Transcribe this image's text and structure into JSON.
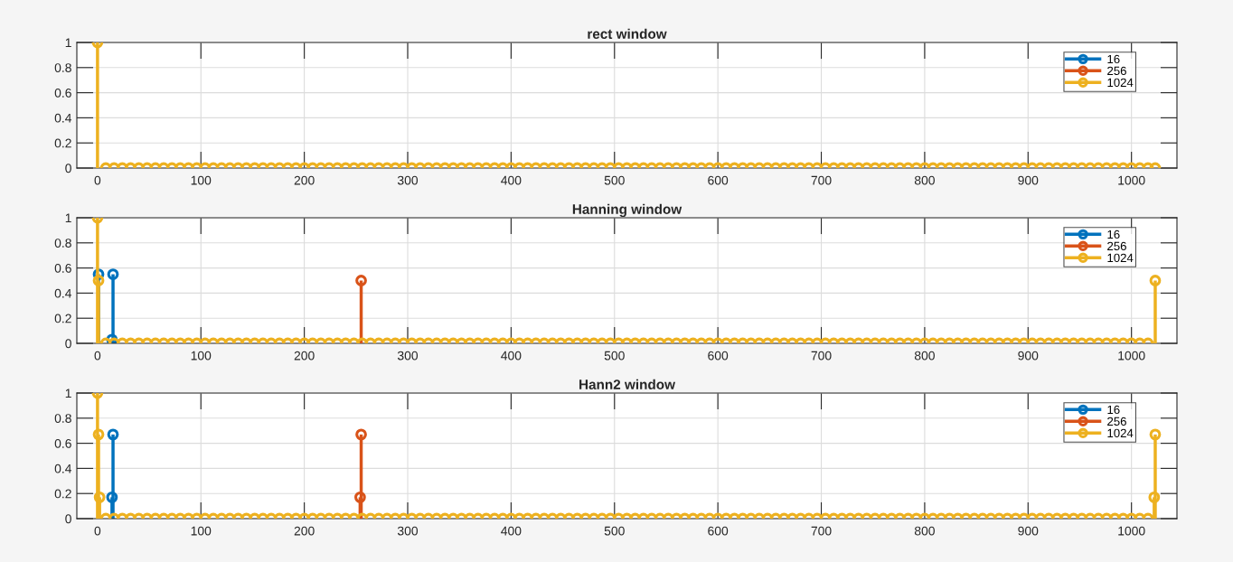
{
  "chart_data": [
    {
      "type": "lollipop",
      "title": "rect window",
      "xlim": [
        -20,
        1044
      ],
      "ylim": [
        0,
        1
      ],
      "xticks": [
        0,
        100,
        200,
        300,
        400,
        500,
        600,
        700,
        800,
        900,
        1000
      ],
      "yticks": [
        0,
        0.2,
        0.4,
        0.6,
        0.8,
        1
      ],
      "grid": true,
      "legend": "top right",
      "marker": "circle",
      "series": [
        {
          "name": "16",
          "color": "#0072bd"
        },
        {
          "name": "256",
          "color": "#d95319"
        },
        {
          "name": "1024",
          "color": "#edb120",
          "x": [
            0,
            8,
            16,
            24,
            32,
            40,
            48,
            56,
            64,
            72,
            80,
            88,
            96,
            104,
            112,
            120,
            128,
            136,
            144,
            152,
            160,
            168,
            176,
            184,
            192,
            200,
            208,
            216,
            224,
            232,
            240,
            248,
            256,
            264,
            272,
            280,
            288,
            296,
            304,
            312,
            320,
            328,
            336,
            344,
            352,
            360,
            368,
            376,
            384,
            392,
            400,
            408,
            416,
            424,
            432,
            440,
            448,
            456,
            464,
            472,
            480,
            488,
            496,
            504,
            512,
            520,
            528,
            536,
            544,
            552,
            560,
            568,
            576,
            584,
            592,
            600,
            608,
            616,
            624,
            632,
            640,
            648,
            656,
            664,
            672,
            680,
            688,
            696,
            704,
            712,
            720,
            728,
            736,
            744,
            752,
            760,
            768,
            776,
            784,
            792,
            800,
            808,
            816,
            824,
            832,
            840,
            848,
            856,
            864,
            872,
            880,
            888,
            896,
            904,
            912,
            920,
            928,
            936,
            944,
            952,
            960,
            968,
            976,
            984,
            992,
            1000,
            1008,
            1016,
            1023
          ],
          "values": [
            1,
            0,
            0,
            0,
            0,
            0,
            0,
            0,
            0,
            0,
            0,
            0,
            0,
            0,
            0,
            0,
            0,
            0,
            0,
            0,
            0,
            0,
            0,
            0,
            0,
            0,
            0,
            0,
            0,
            0,
            0,
            0,
            0,
            0,
            0,
            0,
            0,
            0,
            0,
            0,
            0,
            0,
            0,
            0,
            0,
            0,
            0,
            0,
            0,
            0,
            0,
            0,
            0,
            0,
            0,
            0,
            0,
            0,
            0,
            0,
            0,
            0,
            0,
            0,
            0,
            0,
            0,
            0,
            0,
            0,
            0,
            0,
            0,
            0,
            0,
            0,
            0,
            0,
            0,
            0,
            0,
            0,
            0,
            0,
            0,
            0,
            0,
            0,
            0,
            0,
            0,
            0,
            0,
            0,
            0,
            0,
            0,
            0,
            0,
            0,
            0,
            0,
            0,
            0,
            0,
            0,
            0,
            0,
            0,
            0,
            0,
            0,
            0,
            0,
            0,
            0,
            0,
            0,
            0,
            0,
            0,
            0,
            0,
            0,
            0,
            0,
            0,
            0,
            0
          ]
        }
      ]
    },
    {
      "type": "lollipop",
      "title": "Hanning window",
      "xlim": [
        -20,
        1044
      ],
      "ylim": [
        0,
        1
      ],
      "xticks": [
        0,
        100,
        200,
        300,
        400,
        500,
        600,
        700,
        800,
        900,
        1000
      ],
      "yticks": [
        0,
        0.2,
        0.4,
        0.6,
        0.8,
        1
      ],
      "grid": true,
      "legend": "top right",
      "marker": "circle",
      "series": [
        {
          "name": "16",
          "color": "#0072bd",
          "x": [
            1,
            2,
            14,
            15
          ],
          "values": [
            0.55,
            null,
            0.03,
            0.55
          ]
        },
        {
          "name": "256",
          "color": "#d95319",
          "x": [
            255
          ],
          "values": [
            0.5
          ]
        },
        {
          "name": "1024",
          "color": "#edb120",
          "x": [
            0,
            1,
            8,
            16,
            24,
            32,
            40,
            48,
            56,
            64,
            72,
            80,
            88,
            96,
            104,
            112,
            120,
            128,
            136,
            144,
            152,
            160,
            168,
            176,
            184,
            192,
            200,
            208,
            216,
            224,
            232,
            240,
            248,
            256,
            264,
            272,
            280,
            288,
            296,
            304,
            312,
            320,
            328,
            336,
            344,
            352,
            360,
            368,
            376,
            384,
            392,
            400,
            408,
            416,
            424,
            432,
            440,
            448,
            456,
            464,
            472,
            480,
            488,
            496,
            504,
            512,
            520,
            528,
            536,
            544,
            552,
            560,
            568,
            576,
            584,
            592,
            600,
            608,
            616,
            624,
            632,
            640,
            648,
            656,
            664,
            672,
            680,
            688,
            696,
            704,
            712,
            720,
            728,
            736,
            744,
            752,
            760,
            768,
            776,
            784,
            792,
            800,
            808,
            816,
            824,
            832,
            840,
            848,
            856,
            864,
            872,
            880,
            888,
            896,
            904,
            912,
            920,
            928,
            936,
            944,
            952,
            960,
            968,
            976,
            984,
            992,
            1000,
            1008,
            1016,
            1023
          ],
          "values": [
            1,
            0.5,
            0,
            0,
            0,
            0,
            0,
            0,
            0,
            0,
            0,
            0,
            0,
            0,
            0,
            0,
            0,
            0,
            0,
            0,
            0,
            0,
            0,
            0,
            0,
            0,
            0,
            0,
            0,
            0,
            0,
            0,
            0,
            0,
            0,
            0,
            0,
            0,
            0,
            0,
            0,
            0,
            0,
            0,
            0,
            0,
            0,
            0,
            0,
            0,
            0,
            0,
            0,
            0,
            0,
            0,
            0,
            0,
            0,
            0,
            0,
            0,
            0,
            0,
            0,
            0,
            0,
            0,
            0,
            0,
            0,
            0,
            0,
            0,
            0,
            0,
            0,
            0,
            0,
            0,
            0,
            0,
            0,
            0,
            0,
            0,
            0,
            0,
            0,
            0,
            0,
            0,
            0,
            0,
            0,
            0,
            0,
            0,
            0,
            0,
            0,
            0,
            0,
            0,
            0,
            0,
            0,
            0,
            0,
            0,
            0,
            0,
            0,
            0,
            0,
            0,
            0,
            0,
            0,
            0,
            0,
            0,
            0,
            0,
            0,
            0,
            0,
            0,
            0,
            0.5
          ]
        }
      ]
    },
    {
      "type": "lollipop",
      "title": "Hann2 window",
      "xlim": [
        -20,
        1044
      ],
      "ylim": [
        0,
        1
      ],
      "xticks": [
        0,
        100,
        200,
        300,
        400,
        500,
        600,
        700,
        800,
        900,
        1000
      ],
      "yticks": [
        0,
        0.2,
        0.4,
        0.6,
        0.8,
        1
      ],
      "grid": true,
      "legend": "top right",
      "marker": "circle",
      "series": [
        {
          "name": "16",
          "color": "#0072bd",
          "x": [
            14,
            15
          ],
          "values": [
            0.17,
            0.67
          ]
        },
        {
          "name": "256",
          "color": "#d95319",
          "x": [
            254,
            255
          ],
          "values": [
            0.17,
            0.67
          ]
        },
        {
          "name": "1024",
          "color": "#edb120",
          "x": [
            0,
            1,
            2,
            8,
            16,
            24,
            32,
            40,
            48,
            56,
            64,
            72,
            80,
            88,
            96,
            104,
            112,
            120,
            128,
            136,
            144,
            152,
            160,
            168,
            176,
            184,
            192,
            200,
            208,
            216,
            224,
            232,
            240,
            248,
            256,
            264,
            272,
            280,
            288,
            296,
            304,
            312,
            320,
            328,
            336,
            344,
            352,
            360,
            368,
            376,
            384,
            392,
            400,
            408,
            416,
            424,
            432,
            440,
            448,
            456,
            464,
            472,
            480,
            488,
            496,
            504,
            512,
            520,
            528,
            536,
            544,
            552,
            560,
            568,
            576,
            584,
            592,
            600,
            608,
            616,
            624,
            632,
            640,
            648,
            656,
            664,
            672,
            680,
            688,
            696,
            704,
            712,
            720,
            728,
            736,
            744,
            752,
            760,
            768,
            776,
            784,
            792,
            800,
            808,
            816,
            824,
            832,
            840,
            848,
            856,
            864,
            872,
            880,
            888,
            896,
            904,
            912,
            920,
            928,
            936,
            944,
            952,
            960,
            968,
            976,
            984,
            992,
            1000,
            1008,
            1016,
            1022,
            1023
          ],
          "values": [
            1,
            0.67,
            0.17,
            0,
            0,
            0,
            0,
            0,
            0,
            0,
            0,
            0,
            0,
            0,
            0,
            0,
            0,
            0,
            0,
            0,
            0,
            0,
            0,
            0,
            0,
            0,
            0,
            0,
            0,
            0,
            0,
            0,
            0,
            0,
            0,
            0,
            0,
            0,
            0,
            0,
            0,
            0,
            0,
            0,
            0,
            0,
            0,
            0,
            0,
            0,
            0,
            0,
            0,
            0,
            0,
            0,
            0,
            0,
            0,
            0,
            0,
            0,
            0,
            0,
            0,
            0,
            0,
            0,
            0,
            0,
            0,
            0,
            0,
            0,
            0,
            0,
            0,
            0,
            0,
            0,
            0,
            0,
            0,
            0,
            0,
            0,
            0,
            0,
            0,
            0,
            0,
            0,
            0,
            0,
            0,
            0,
            0,
            0,
            0,
            0,
            0,
            0,
            0,
            0,
            0,
            0,
            0,
            0,
            0,
            0,
            0,
            0,
            0,
            0,
            0,
            0,
            0,
            0,
            0,
            0,
            0,
            0,
            0,
            0,
            0,
            0,
            0,
            0,
            0,
            0,
            0.17,
            0.67
          ]
        }
      ]
    }
  ]
}
